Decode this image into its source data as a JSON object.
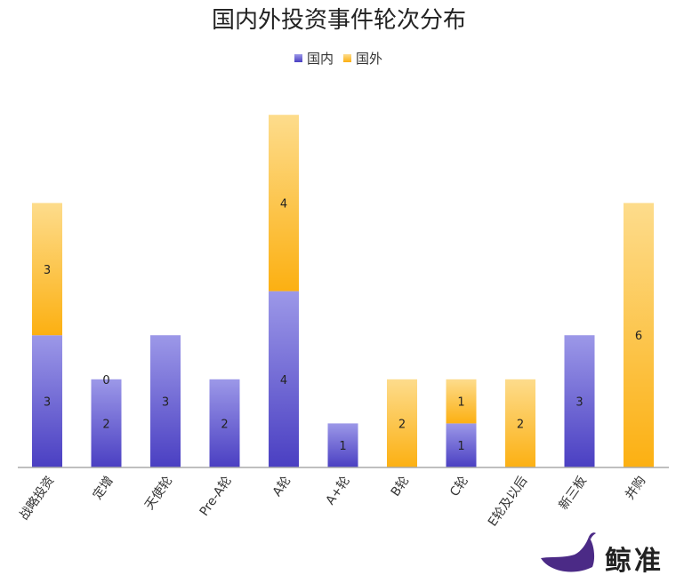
{
  "chart_data": {
    "type": "bar",
    "stacked": true,
    "title": "国内外投资事件轮次分布",
    "legend_position": "top",
    "categories": [
      "战略投资",
      "定增",
      "天使轮",
      "Pre-A轮",
      "A轮",
      "A+轮",
      "B轮",
      "C轮",
      "E轮及以后",
      "新三板",
      "并购"
    ],
    "series": [
      {
        "name": "国内",
        "values": [
          3,
          2,
          3,
          2,
          4,
          1,
          0,
          1,
          0,
          3,
          0
        ],
        "labels": [
          "3",
          "2",
          "3",
          "2",
          "4",
          "1",
          "",
          "1",
          "",
          "3",
          ""
        ]
      },
      {
        "name": "国外",
        "values": [
          3,
          0,
          0,
          0,
          4,
          0,
          2,
          1,
          2,
          0,
          6
        ],
        "labels": [
          "3",
          "0",
          "",
          "",
          "4",
          "",
          "2",
          "1",
          "2",
          "",
          "6"
        ]
      }
    ],
    "ylim": [
      0,
      8
    ],
    "grid": false,
    "colors": {
      "domestic_top": "#9c98e8",
      "domestic_bottom": "#4a3fc2",
      "foreign_top": "#fddc8c",
      "foreign_bottom": "#fcb012",
      "axis": "#aaaaaa"
    }
  },
  "watermark": {
    "text": "鲸准",
    "icon": "whale-icon"
  }
}
